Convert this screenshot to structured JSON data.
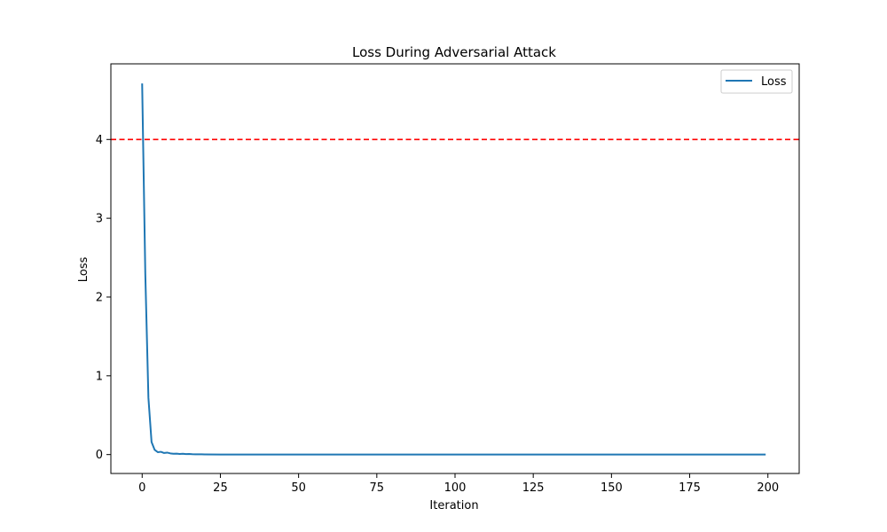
{
  "chart_data": {
    "type": "line",
    "title": "Loss During Adversarial Attack",
    "xlabel": "Iteration",
    "ylabel": "Loss",
    "xlim": [
      -10,
      210
    ],
    "ylim": [
      -0.24,
      4.96
    ],
    "xticks": [
      0,
      25,
      50,
      75,
      100,
      125,
      150,
      175,
      200
    ],
    "yticks": [
      0,
      1,
      2,
      3,
      4
    ],
    "grid": false,
    "legend_position": "upper-right",
    "series": [
      {
        "name": "Loss",
        "color": "#1f77b4",
        "x": [
          0,
          1,
          2,
          3,
          4,
          5,
          6,
          7,
          8,
          9,
          10,
          11,
          12,
          13,
          14,
          15,
          16,
          17,
          18,
          19,
          20,
          25,
          30,
          40,
          50,
          60,
          70,
          80,
          90,
          100,
          110,
          120,
          130,
          140,
          150,
          160,
          170,
          180,
          190,
          199
        ],
        "y": [
          4.7,
          2.3,
          0.72,
          0.16,
          0.06,
          0.03,
          0.035,
          0.02,
          0.025,
          0.015,
          0.01,
          0.012,
          0.008,
          0.01,
          0.006,
          0.008,
          0.005,
          0.004,
          0.003,
          0.003,
          0.002,
          0.001,
          0.001,
          0.0,
          0.0,
          0.0,
          0.0,
          0.0,
          0.0,
          0.0,
          0.0,
          0.0,
          0.0,
          0.0,
          0.0,
          0.0,
          0.0,
          0.0,
          0.0,
          0.0
        ]
      }
    ],
    "reference_lines": [
      {
        "orientation": "horizontal",
        "y": 4.0,
        "color": "#ff0000",
        "style": "dashed"
      }
    ]
  }
}
